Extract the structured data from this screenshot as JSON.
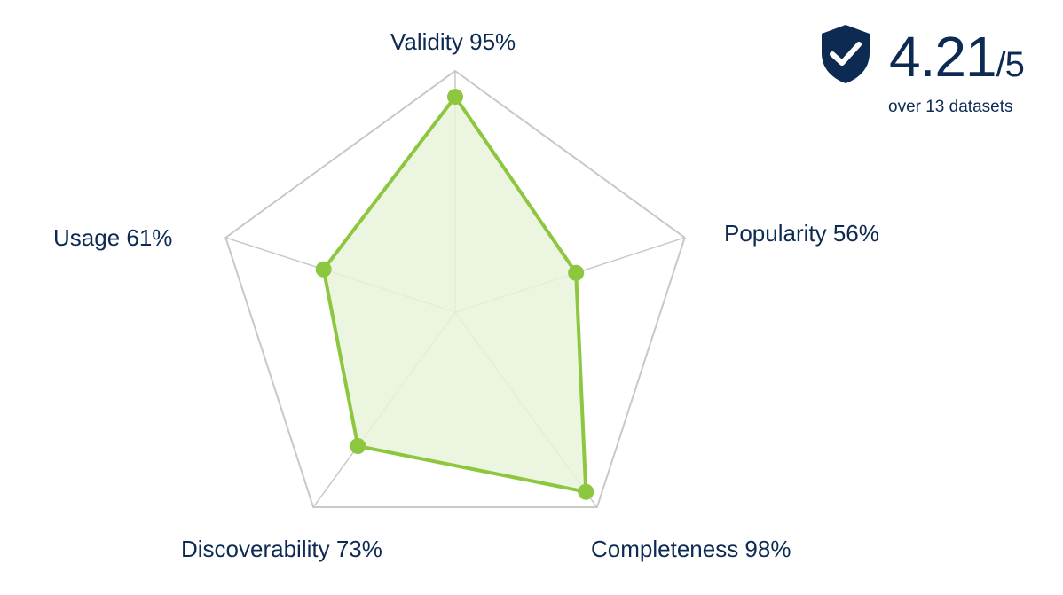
{
  "chart_data": {
    "type": "radar",
    "axes": [
      "Validity",
      "Popularity",
      "Completeness",
      "Discoverability",
      "Usage"
    ],
    "values": [
      95,
      56,
      98,
      73,
      61
    ],
    "labels": [
      "Validity 95%",
      "Popularity 56%",
      "Completeness 98%",
      "Discoverability 73%",
      "Usage 61%"
    ],
    "range": [
      0,
      100
    ],
    "grid": "outer pentagon with spokes",
    "colors": {
      "line": "#8dc63f",
      "fill": "#e8f3d9",
      "grid": "#c8c8c8",
      "text": "#0d2a52"
    }
  },
  "summary": {
    "icon": "shield-check-icon",
    "score": "4.21",
    "out_of": "/5",
    "subtitle": "over 13 datasets"
  }
}
